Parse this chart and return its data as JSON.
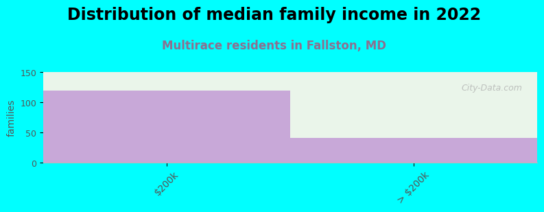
{
  "title": "Distribution of median family income in 2022",
  "subtitle": "Multirace residents in Fallston, MD",
  "categories": [
    "$200k",
    "> $200k"
  ],
  "values": [
    120,
    42
  ],
  "bar_color": "#C8A8D8",
  "background_color": "#00FFFF",
  "plot_bg_color": "#FFFFFF",
  "bar_bg_color": "#EAF5EA",
  "ylabel": "families",
  "ylim": [
    0,
    150
  ],
  "yticks": [
    0,
    50,
    100,
    150
  ],
  "title_fontsize": 17,
  "subtitle_fontsize": 12,
  "subtitle_color": "#8B7090",
  "watermark": "City-Data.com",
  "bar_edge_color": "#BBBBBB"
}
